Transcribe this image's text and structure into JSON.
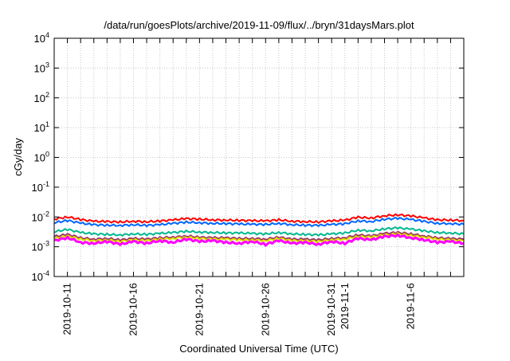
{
  "chart_data": {
    "type": "line",
    "title": "/data/run/goesPlots/archive/2019-11-09/flux/../bryn/31daysMars.plot",
    "xlabel": "Coordinated Universal Time (UTC)",
    "ylabel": "cGy/day",
    "yscale": "log",
    "ylim": [
      0.0001,
      10000
    ],
    "xlim_days_from_2019_10_10": [
      0,
      31
    ],
    "grid": true,
    "y_ticks": [
      {
        "base": "10",
        "exp": "4",
        "value": 10000
      },
      {
        "base": "10",
        "exp": "3",
        "value": 1000
      },
      {
        "base": "10",
        "exp": "2",
        "value": 100
      },
      {
        "base": "10",
        "exp": "1",
        "value": 10
      },
      {
        "base": "10",
        "exp": "0",
        "value": 1
      },
      {
        "base": "10",
        "exp": "-1",
        "value": 0.1
      },
      {
        "base": "10",
        "exp": "-2",
        "value": 0.01
      },
      {
        "base": "10",
        "exp": "-3",
        "value": 0.001
      },
      {
        "base": "10",
        "exp": "-4",
        "value": 0.0001
      }
    ],
    "x_tick_labels": [
      {
        "label": "2019-10-11",
        "day": 1
      },
      {
        "label": "2019-10-16",
        "day": 6
      },
      {
        "label": "2019-10-21",
        "day": 11
      },
      {
        "label": "2019-10-26",
        "day": 16
      },
      {
        "label": "2019-10-31",
        "day": 21
      },
      {
        "label": "2019-11-1",
        "day": 22
      },
      {
        "label": "2019-11-6",
        "day": 27
      }
    ],
    "x_days": [
      0,
      1,
      2,
      3,
      4,
      5,
      6,
      7,
      8,
      9,
      10,
      11,
      12,
      13,
      14,
      15,
      16,
      17,
      18,
      19,
      20,
      21,
      22,
      23,
      24,
      25,
      26,
      27,
      28,
      29,
      30,
      31
    ],
    "series": [
      {
        "name": "red",
        "color": "#ff0000",
        "values": [
          0.0085,
          0.01,
          0.0082,
          0.0072,
          0.007,
          0.0068,
          0.0072,
          0.0069,
          0.0073,
          0.008,
          0.0088,
          0.0084,
          0.008,
          0.0079,
          0.0077,
          0.0075,
          0.0074,
          0.008,
          0.0072,
          0.007,
          0.0068,
          0.0074,
          0.0078,
          0.0098,
          0.0092,
          0.011,
          0.0118,
          0.0108,
          0.0093,
          0.008,
          0.0079,
          0.0075
        ]
      },
      {
        "name": "blue",
        "color": "#0066ff",
        "values": [
          0.0064,
          0.0076,
          0.0062,
          0.0055,
          0.0053,
          0.0052,
          0.0055,
          0.0052,
          0.0055,
          0.0061,
          0.0067,
          0.0064,
          0.0061,
          0.006,
          0.0058,
          0.0057,
          0.0056,
          0.0061,
          0.0055,
          0.0053,
          0.0052,
          0.0056,
          0.0059,
          0.0074,
          0.007,
          0.0084,
          0.009,
          0.0082,
          0.0071,
          0.0061,
          0.006,
          0.0057
        ]
      },
      {
        "name": "teal",
        "color": "#00b890",
        "values": [
          0.0032,
          0.0038,
          0.003,
          0.0027,
          0.0026,
          0.0025,
          0.0027,
          0.0026,
          0.0028,
          0.003,
          0.0033,
          0.0031,
          0.003,
          0.0029,
          0.0029,
          0.0028,
          0.0027,
          0.003,
          0.0027,
          0.0026,
          0.0025,
          0.0027,
          0.0029,
          0.0036,
          0.0034,
          0.004,
          0.0043,
          0.0039,
          0.0034,
          0.003,
          0.0029,
          0.0027
        ]
      },
      {
        "name": "purple",
        "color": "#993366",
        "values": [
          0.0022,
          0.0026,
          0.002,
          0.0018,
          0.0019,
          0.0017,
          0.0019,
          0.0018,
          0.002,
          0.0021,
          0.0023,
          0.0021,
          0.002,
          0.002,
          0.0019,
          0.0019,
          0.0018,
          0.0021,
          0.0018,
          0.0018,
          0.0017,
          0.0019,
          0.002,
          0.0025,
          0.0023,
          0.0028,
          0.003,
          0.0027,
          0.0023,
          0.002,
          0.0019,
          0.0018
        ]
      },
      {
        "name": "yellow",
        "color": "#e0e000",
        "values": [
          0.0019,
          0.0023,
          0.0018,
          0.0016,
          0.0017,
          0.0015,
          0.0017,
          0.0016,
          0.0018,
          0.0019,
          0.0021,
          0.0019,
          0.0018,
          0.0018,
          0.0017,
          0.0017,
          0.0016,
          0.0019,
          0.0016,
          0.0016,
          0.0015,
          0.0017,
          0.0018,
          0.0022,
          0.0021,
          0.0025,
          0.0027,
          0.0024,
          0.0021,
          0.0018,
          0.0017,
          0.0016
        ]
      },
      {
        "name": "magenta",
        "color": "#ff00ff",
        "values": [
          0.0016,
          0.002,
          0.0014,
          0.0013,
          0.0015,
          0.0012,
          0.0015,
          0.0013,
          0.0016,
          0.0014,
          0.0018,
          0.0015,
          0.0016,
          0.0014,
          0.0013,
          0.0015,
          0.0012,
          0.0016,
          0.0013,
          0.0014,
          0.0012,
          0.0015,
          0.0013,
          0.0019,
          0.0017,
          0.0022,
          0.0024,
          0.002,
          0.0017,
          0.0014,
          0.0015,
          0.0013
        ]
      }
    ]
  }
}
